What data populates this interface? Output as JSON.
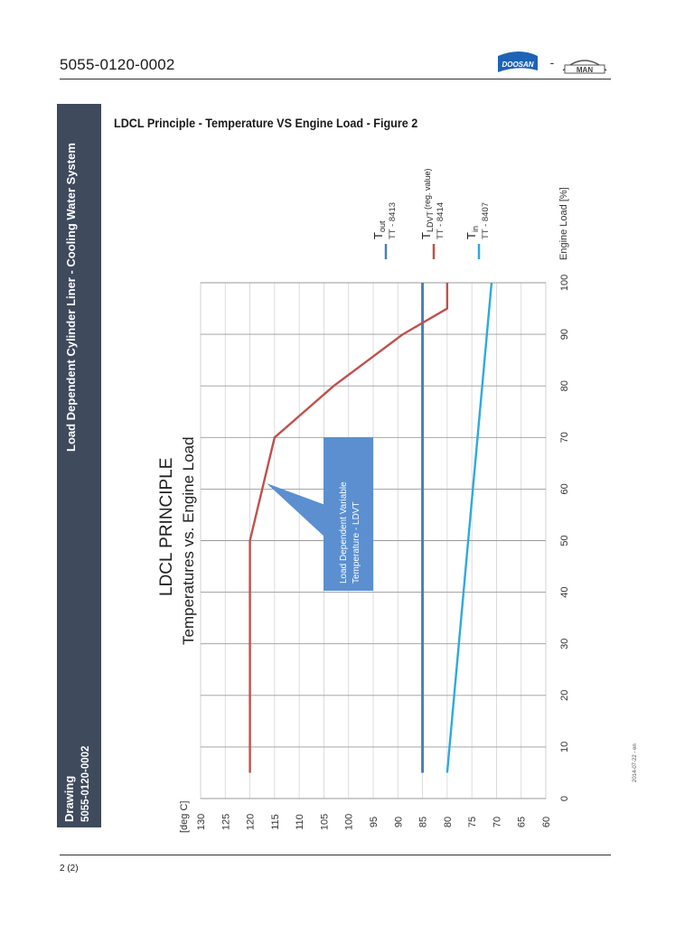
{
  "header": {
    "doc_number": "5055-0120-0002",
    "logo_doosan": "DOOSAN",
    "logo_sep": "-",
    "logo_man": "MAN"
  },
  "sidebar": {
    "section_title": "Load Dependent Cylinder Liner - Cooling Water System",
    "drawing_label": "Drawing",
    "drawing_number": "5055-0120-0002"
  },
  "figure": {
    "title": "LDCL Principle - Temperature VS Engine Load - Figure 2"
  },
  "footer": {
    "page": "2 (2)",
    "date_stamp": "2014-07-22 - en"
  },
  "colors": {
    "sidebar_bg": "#3f4a5d",
    "t_out": "#4a7fc0",
    "t_ldvt": "#c0504d",
    "t_in": "#2eaadc",
    "callout": "#5b8fd0"
  },
  "chart_data": {
    "type": "line",
    "title": "LDCL PRINCIPLE",
    "subtitle": "Temperatures vs. Engine Load",
    "xlabel": "Engine Load [%]",
    "ylabel": "[deg C]",
    "xlim": [
      0,
      100
    ],
    "ylim": [
      60,
      130
    ],
    "x_ticks": [
      0,
      10,
      20,
      30,
      40,
      50,
      60,
      70,
      80,
      90,
      100
    ],
    "y_ticks": [
      130,
      125,
      120,
      115,
      110,
      105,
      100,
      95,
      90,
      85,
      80,
      75,
      70,
      65,
      60
    ],
    "x_tick_labels": [
      "0",
      "10",
      "20",
      "30",
      "40",
      "50",
      "60",
      "70",
      "80",
      "90",
      "100"
    ],
    "y_tick_labels": [
      "130",
      "125",
      "120",
      "115",
      "110",
      "105",
      "100",
      "95",
      "90",
      "85",
      "80",
      "75",
      "70",
      "65",
      "60"
    ],
    "grid": true,
    "series": [
      {
        "key": "t_out",
        "name": "Tout",
        "sub": "out",
        "tag": "TT - 8413",
        "color": "#4a7fc0",
        "x": [
          5,
          100
        ],
        "y": [
          85,
          85
        ]
      },
      {
        "key": "t_ldvt",
        "name": "TLDVT (reg. value)",
        "sub": "LDVT",
        "extra": "(reg. value)",
        "tag": "TT - 8414",
        "color": "#c0504d",
        "x": [
          5,
          50,
          70,
          75,
          80,
          85,
          90,
          95,
          100
        ],
        "y": [
          120,
          120,
          115,
          109,
          103,
          96,
          89,
          80,
          80
        ]
      },
      {
        "key": "t_in",
        "name": "Tin",
        "sub": "in",
        "tag": "TT - 8407",
        "color": "#2eaadc",
        "x": [
          5,
          100
        ],
        "y": [
          80,
          71
        ]
      }
    ],
    "annotation": {
      "line1": "Load Dependent Variable",
      "line2": "Temperature - LDVT"
    }
  }
}
